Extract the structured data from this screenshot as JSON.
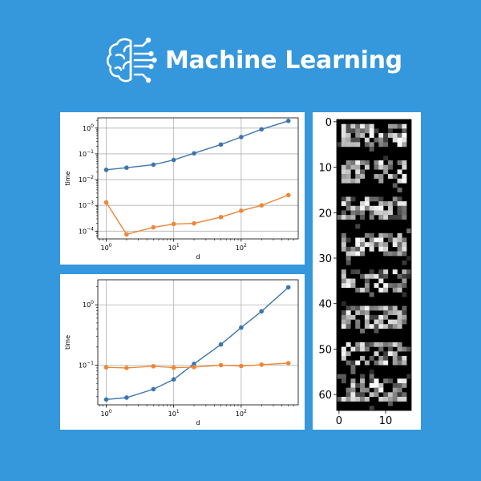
{
  "header": {
    "title": "Machine Learning",
    "logo_icon": "brain-circuit-icon",
    "text_color": "#ffffff",
    "background_color": "#3597dc"
  },
  "chart_data": [
    {
      "type": "line",
      "xscale": "log",
      "yscale": "log",
      "xlabel": "d",
      "ylabel": "time",
      "xlim": [
        0.75,
        700
      ],
      "ylim": [
        5e-05,
        2.5
      ],
      "grid": true,
      "x_ticks": [
        {
          "value": 1,
          "label": "10",
          "exp": "0"
        },
        {
          "value": 10,
          "label": "10",
          "exp": "1"
        },
        {
          "value": 100,
          "label": "10",
          "exp": "2"
        }
      ],
      "y_ticks": [
        {
          "value": 0.0001,
          "label": "10",
          "exp": "−4"
        },
        {
          "value": 0.001,
          "label": "10",
          "exp": "−3"
        },
        {
          "value": 0.01,
          "label": "10",
          "exp": "−2"
        },
        {
          "value": 0.1,
          "label": "10",
          "exp": "−1"
        },
        {
          "value": 1,
          "label": "10",
          "exp": "0"
        }
      ],
      "series": [
        {
          "color": "#3b75af",
          "x": [
            1,
            2,
            5,
            10,
            20,
            50,
            100,
            200,
            500
          ],
          "y": [
            0.024,
            0.029,
            0.038,
            0.058,
            0.105,
            0.23,
            0.45,
            0.9,
            1.9
          ]
        },
        {
          "color": "#ef8636",
          "x": [
            1,
            2,
            5,
            10,
            20,
            50,
            100,
            200,
            500
          ],
          "y": [
            0.0013,
            7.5e-05,
            0.00014,
            0.00019,
            0.0002,
            0.00035,
            0.00062,
            0.001,
            0.0025
          ]
        }
      ]
    },
    {
      "type": "line",
      "xscale": "log",
      "yscale": "log",
      "xlabel": "d",
      "ylabel": "time",
      "xlim": [
        0.75,
        700
      ],
      "ylim": [
        0.022,
        2.6
      ],
      "grid": true,
      "x_ticks": [
        {
          "value": 1,
          "label": "10",
          "exp": "0"
        },
        {
          "value": 10,
          "label": "10",
          "exp": "1"
        },
        {
          "value": 100,
          "label": "10",
          "exp": "2"
        }
      ],
      "y_ticks": [
        {
          "value": 0.1,
          "label": "10",
          "exp": "−1"
        },
        {
          "value": 1,
          "label": "10",
          "exp": "0"
        }
      ],
      "series": [
        {
          "color": "#3b75af",
          "x": [
            1,
            2,
            5,
            10,
            20,
            50,
            100,
            200,
            500
          ],
          "y": [
            0.027,
            0.029,
            0.04,
            0.058,
            0.105,
            0.22,
            0.42,
            0.78,
            1.95
          ]
        },
        {
          "color": "#ef8636",
          "x": [
            1,
            2,
            5,
            10,
            20,
            50,
            100,
            200,
            500
          ],
          "y": [
            0.092,
            0.09,
            0.096,
            0.091,
            0.093,
            0.1,
            0.097,
            0.102,
            0.108
          ]
        }
      ]
    },
    {
      "type": "heatmap",
      "colormap": "gray",
      "rows": 64,
      "cols": 16,
      "x_ticks": [
        {
          "value": 0,
          "label": "0"
        },
        {
          "value": 10,
          "label": "10"
        }
      ],
      "y_ticks": [
        {
          "value": 0,
          "label": "0"
        },
        {
          "value": 10,
          "label": "10"
        },
        {
          "value": 20,
          "label": "20"
        },
        {
          "value": 30,
          "label": "30"
        },
        {
          "value": 40,
          "label": "40"
        },
        {
          "value": 50,
          "label": "50"
        },
        {
          "value": 60,
          "label": "60"
        }
      ]
    }
  ]
}
